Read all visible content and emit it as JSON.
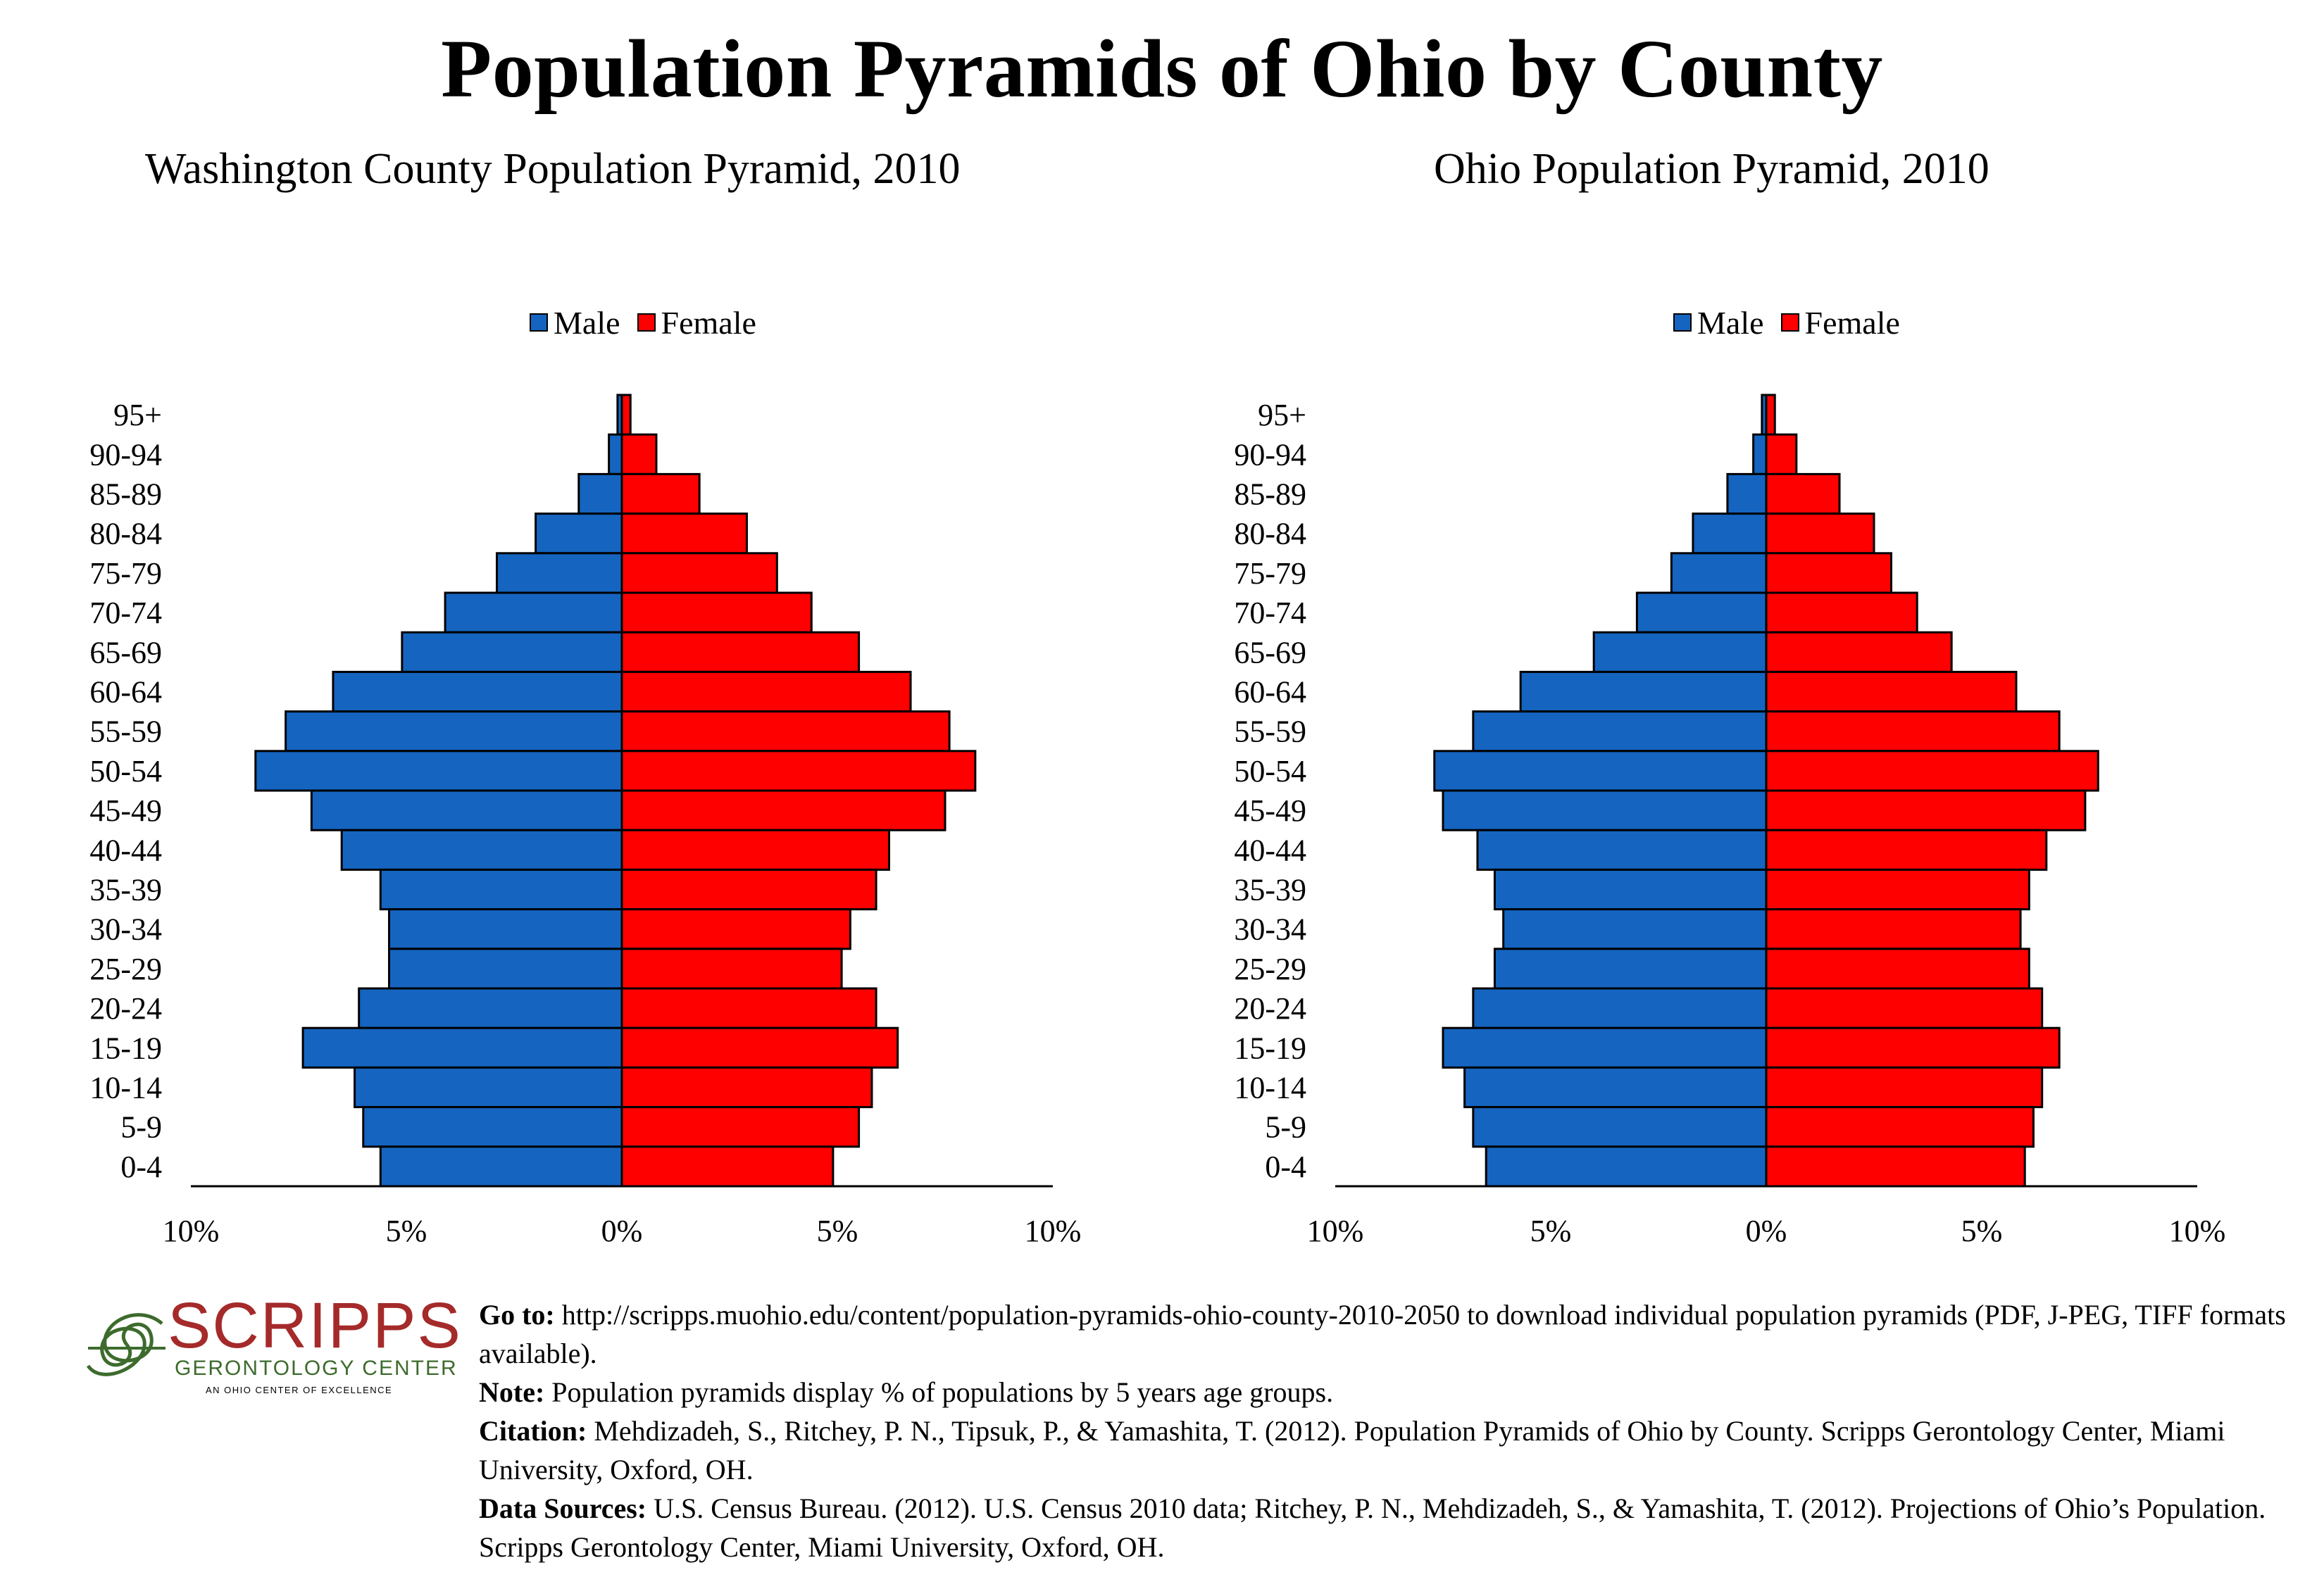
{
  "title": "Population Pyramids of Ohio by County",
  "legend": {
    "male": "Male",
    "female": "Female"
  },
  "colors": {
    "male": "#1565c0",
    "female": "#ff0000"
  },
  "chart_data": [
    {
      "type": "bar",
      "title": "Washington County Population Pyramid, 2010",
      "categories": [
        "95+",
        "90-94",
        "85-89",
        "80-84",
        "75-79",
        "70-74",
        "65-69",
        "60-64",
        "55-59",
        "50-54",
        "45-49",
        "40-44",
        "35-39",
        "30-34",
        "25-29",
        "20-24",
        "15-19",
        "10-14",
        "5-9",
        "0-4"
      ],
      "series": [
        {
          "name": "Male",
          "values": [
            0.1,
            0.3,
            1.0,
            2.0,
            2.9,
            4.1,
            5.1,
            6.7,
            7.8,
            8.5,
            7.2,
            6.5,
            5.6,
            5.4,
            5.4,
            6.1,
            7.4,
            6.2,
            6.0,
            5.6
          ]
        },
        {
          "name": "Female",
          "values": [
            0.2,
            0.8,
            1.8,
            2.9,
            3.6,
            4.4,
            5.5,
            6.7,
            7.6,
            8.2,
            7.5,
            6.2,
            5.9,
            5.3,
            5.1,
            5.9,
            6.4,
            5.8,
            5.5,
            4.9
          ]
        }
      ],
      "x_ticks": [
        "10%",
        "5%",
        "0%",
        "5%",
        "10%"
      ],
      "xlim": [
        -10,
        10
      ],
      "legend_position": "top"
    },
    {
      "type": "bar",
      "title": "Ohio Population Pyramid, 2010",
      "categories": [
        "95+",
        "90-94",
        "85-89",
        "80-84",
        "75-79",
        "70-74",
        "65-69",
        "60-64",
        "55-59",
        "50-54",
        "45-49",
        "40-44",
        "35-39",
        "30-34",
        "25-29",
        "20-24",
        "15-19",
        "10-14",
        "5-9",
        "0-4"
      ],
      "series": [
        {
          "name": "Male",
          "values": [
            0.1,
            0.3,
            0.9,
            1.7,
            2.2,
            3.0,
            4.0,
            5.7,
            6.8,
            7.7,
            7.5,
            6.7,
            6.3,
            6.1,
            6.3,
            6.8,
            7.5,
            7.0,
            6.8,
            6.5
          ]
        },
        {
          "name": "Female",
          "values": [
            0.2,
            0.7,
            1.7,
            2.5,
            2.9,
            3.5,
            4.3,
            5.8,
            6.8,
            7.7,
            7.4,
            6.5,
            6.1,
            5.9,
            6.1,
            6.4,
            6.8,
            6.4,
            6.2,
            6.0
          ]
        }
      ],
      "x_ticks": [
        "10%",
        "5%",
        "0%",
        "5%",
        "10%"
      ],
      "xlim": [
        -10,
        10
      ],
      "legend_position": "top"
    }
  ],
  "logo": {
    "word": "SCRIPPS",
    "sub": "GERONTOLOGY CENTER",
    "tag": "AN OHIO CENTER OF EXCELLENCE"
  },
  "footer": {
    "goto_label": "Go to:",
    "goto_text": " http://scripps.muohio.edu/content/population-pyramids-ohio-county-2010-2050 to download individual population pyramids (PDF, J-PEG, TIFF formats available).",
    "note_label": "Note:",
    "note_text": " Population pyramids display % of populations by 5 years age groups.",
    "citation_label": "Citation:",
    "citation_text": " Mehdizadeh, S., Ritchey, P. N., Tipsuk, P., & Yamashita, T. (2012). Population Pyramids of Ohio by County. Scripps Gerontology Center, Miami University, Oxford, OH.",
    "sources_label": "Data Sources:",
    "sources_text": " U.S. Census Bureau. (2012). U.S. Census 2010 data; Ritchey, P. N., Mehdizadeh, S., & Yamashita, T. (2012). Projections of Ohio’s Population. Scripps Gerontology Center, Miami University, Oxford, OH."
  }
}
